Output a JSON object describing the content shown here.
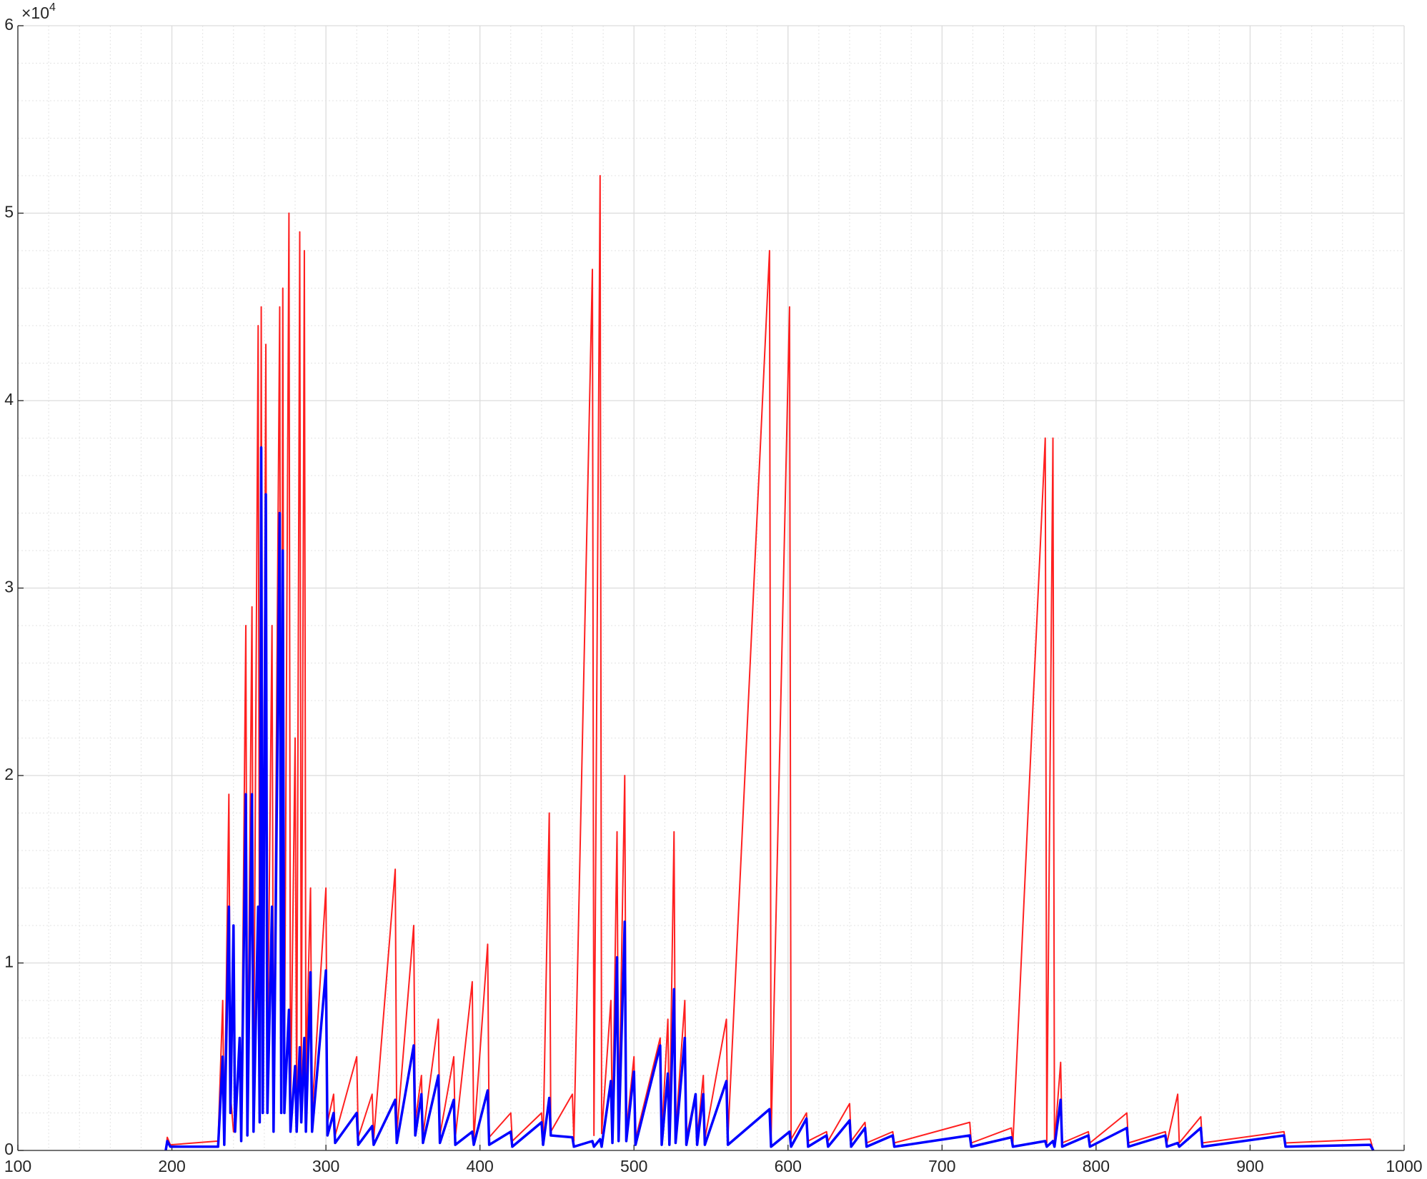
{
  "chart_data": {
    "type": "line",
    "x": [
      196,
      197,
      199,
      230,
      233,
      234,
      237,
      238,
      240,
      241,
      244,
      245,
      248,
      249,
      252,
      253,
      256,
      257,
      258,
      259,
      261,
      262,
      265,
      266,
      270,
      271,
      272,
      273,
      276,
      277,
      280,
      281,
      283,
      284,
      286,
      287,
      290,
      291,
      300,
      301,
      305,
      306,
      320,
      321,
      330,
      331,
      345,
      346,
      357,
      358,
      362,
      363,
      373,
      374,
      383,
      384,
      395,
      396,
      405,
      406,
      420,
      421,
      440,
      441,
      445,
      446,
      460,
      461,
      473,
      474,
      478,
      479,
      485,
      486,
      489,
      490,
      494,
      495,
      500,
      501,
      517,
      518,
      522,
      523,
      526,
      527,
      533,
      534,
      540,
      541,
      545,
      546,
      560,
      561,
      588,
      589,
      601,
      602,
      612,
      613,
      625,
      626,
      640,
      641,
      650,
      651,
      668,
      669,
      718,
      719,
      745,
      746,
      767,
      768,
      772,
      773,
      777,
      778,
      795,
      796,
      820,
      821,
      845,
      846,
      853,
      854,
      868,
      869,
      922,
      923,
      978,
      980
    ],
    "series": [
      {
        "name": "red",
        "color": "#ff2020",
        "width": 2,
        "values": [
          0,
          700,
          300,
          500,
          8000,
          800,
          19000,
          3000,
          1000,
          1000,
          6000,
          900,
          28000,
          1500,
          29000,
          2000,
          44000,
          3000,
          45000,
          5000,
          43000,
          4000,
          28000,
          2000,
          45000,
          3000,
          46000,
          3000,
          50000,
          2000,
          22000,
          2000,
          49000,
          3000,
          48000,
          4000,
          14000,
          2000,
          14000,
          1500,
          3000,
          800,
          5000,
          700,
          3000,
          600,
          15000,
          900,
          12000,
          1500,
          4000,
          800,
          7000,
          800,
          5000,
          700,
          9000,
          600,
          11000,
          700,
          2000,
          500,
          2000,
          500,
          18000,
          1000,
          3000,
          500,
          47000,
          800,
          52000,
          900,
          8000,
          800,
          17000,
          1000,
          20000,
          1000,
          5000,
          600,
          6000,
          700,
          7000,
          700,
          17000,
          900,
          8000,
          700,
          3000,
          600,
          4000,
          600,
          7000,
          700,
          48000,
          600,
          45000,
          600,
          2000,
          500,
          1000,
          500,
          2500,
          500,
          1500,
          400,
          1000,
          400,
          1500,
          400,
          1200,
          400,
          38000,
          400,
          38000,
          400,
          4700,
          400,
          1000,
          400,
          2000,
          400,
          1000,
          400,
          3000,
          400,
          1800,
          400,
          1000,
          400,
          600,
          0
        ]
      },
      {
        "name": "blue",
        "color": "#0000ff",
        "width": 3.5,
        "values": [
          0,
          500,
          200,
          200,
          5000,
          300,
          13000,
          2000,
          12000,
          1000,
          6000,
          500,
          19000,
          800,
          19000,
          1000,
          13000,
          1500,
          37500,
          2000,
          35000,
          2000,
          13000,
          1000,
          34000,
          2000,
          32000,
          2000,
          7500,
          1000,
          4500,
          1000,
          5500,
          1500,
          6000,
          1000,
          9500,
          1000,
          9600,
          800,
          2000,
          400,
          2000,
          300,
          1300,
          300,
          2700,
          400,
          5600,
          800,
          3000,
          400,
          4000,
          400,
          2700,
          300,
          1000,
          300,
          3200,
          300,
          1000,
          200,
          1500,
          300,
          2800,
          800,
          700,
          200,
          500,
          200,
          600,
          200,
          3700,
          400,
          10300,
          500,
          12200,
          500,
          4200,
          300,
          5600,
          300,
          4100,
          300,
          8600,
          400,
          6000,
          300,
          3000,
          300,
          3000,
          300,
          3700,
          300,
          2200,
          200,
          1000,
          200,
          1700,
          200,
          800,
          200,
          1600,
          200,
          1200,
          200,
          800,
          200,
          800,
          200,
          700,
          200,
          500,
          200,
          500,
          200,
          2700,
          200,
          800,
          200,
          1200,
          200,
          800,
          200,
          400,
          200,
          1200,
          200,
          800,
          200,
          300,
          0
        ]
      }
    ],
    "xlim": [
      100,
      1000
    ],
    "xticks": [
      100,
      200,
      300,
      400,
      500,
      600,
      700,
      800,
      900,
      1000
    ],
    "ylim": [
      0,
      60000
    ],
    "yticks": [
      {
        "value": 0,
        "label": "0"
      },
      {
        "value": 10000,
        "label": "1"
      },
      {
        "value": 20000,
        "label": "2"
      },
      {
        "value": 30000,
        "label": "3"
      },
      {
        "value": 40000,
        "label": "4"
      },
      {
        "value": 50000,
        "label": "5"
      },
      {
        "value": 60000,
        "label": "6"
      }
    ],
    "y_multiplier": {
      "base": "×10",
      "exponent": "4"
    },
    "grid": true,
    "minor_grid": true
  }
}
